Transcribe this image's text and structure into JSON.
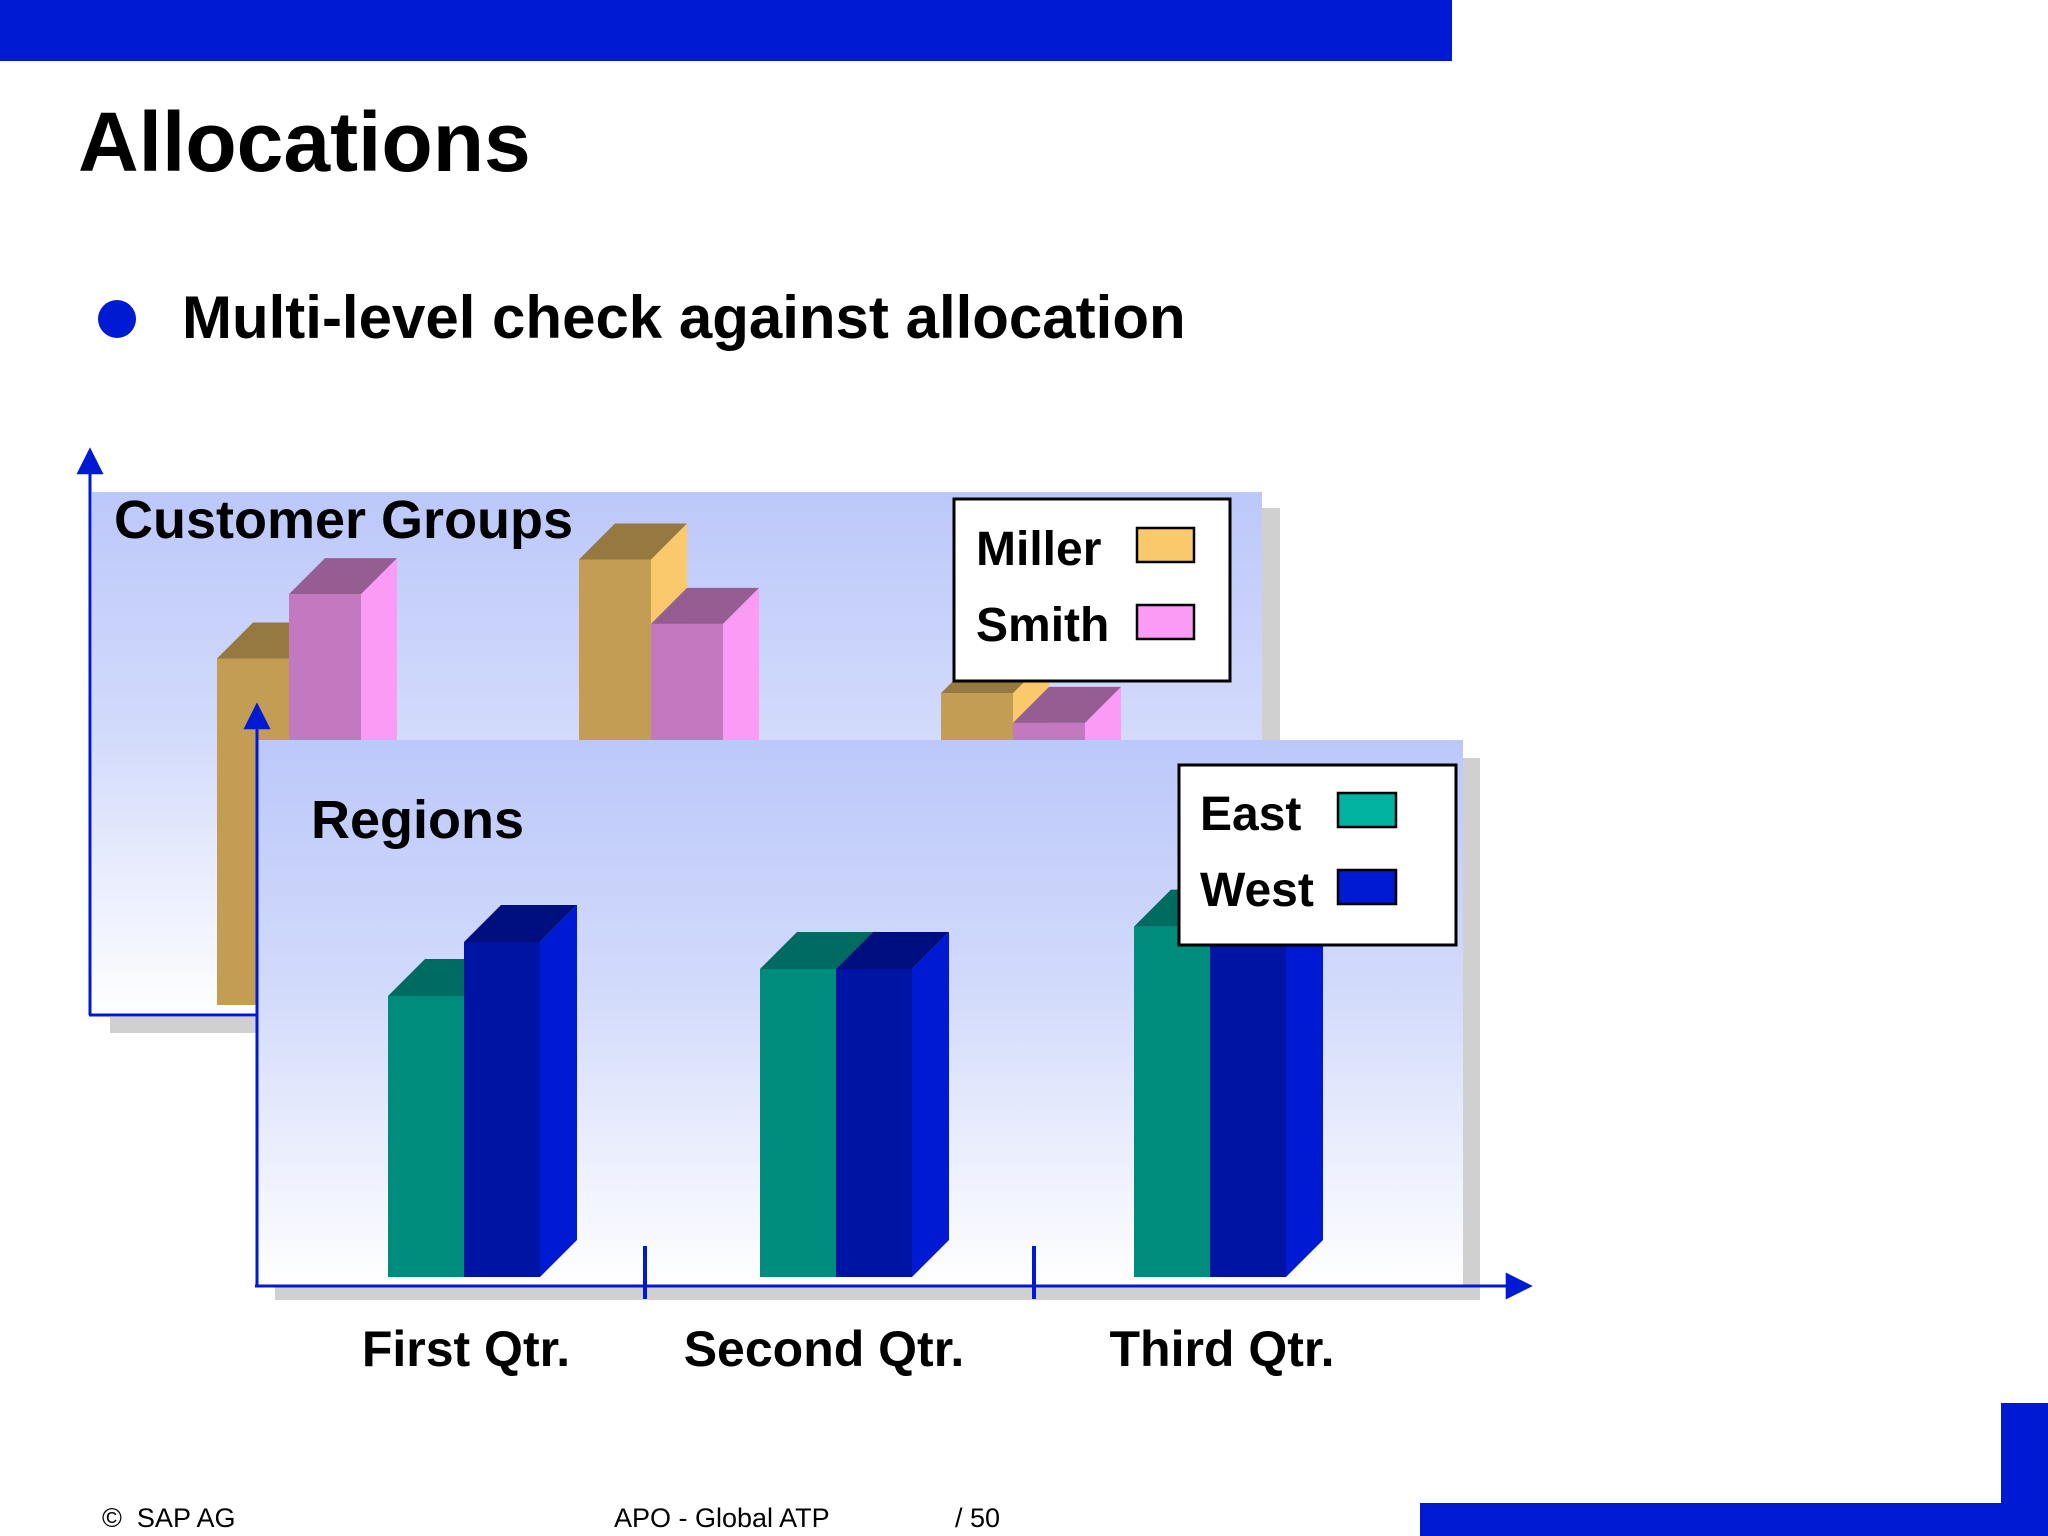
{
  "slide": {
    "title": "Allocations",
    "bullet": "Multi-level check against allocation"
  },
  "footer": {
    "copyright": "SAP AG",
    "presentation_title": "APO - Global ATP",
    "page": "/ 50"
  },
  "colors": {
    "accent": "#0019D2",
    "miller": "#F9C96B",
    "smith": "#FA9BF5",
    "east": "#00B3A0",
    "west": "#0019D2"
  },
  "chart_data": [
    {
      "type": "bar",
      "title": "Customer Groups",
      "categories": [
        "First Qtr.",
        "Second Qtr.",
        "Third Qtr."
      ],
      "series": [
        {
          "name": "Miller",
          "values": [
            70,
            90,
            63
          ]
        },
        {
          "name": "Smith",
          "values": [
            83,
            77,
            57
          ]
        }
      ],
      "ylim": [
        0,
        100
      ],
      "legend": "top-right"
    },
    {
      "type": "bar",
      "title": "Regions",
      "categories": [
        "First Qtr.",
        "Second Qtr.",
        "Third Qtr."
      ],
      "series": [
        {
          "name": "East",
          "values": [
            73,
            80,
            91
          ]
        },
        {
          "name": "West",
          "values": [
            87,
            80,
            91
          ]
        }
      ],
      "ylim": [
        0,
        100
      ],
      "legend": "top-right"
    }
  ]
}
